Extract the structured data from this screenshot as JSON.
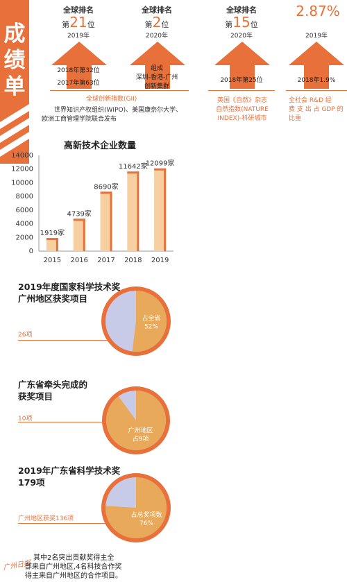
{
  "sidebar": {
    "title": "成绩单",
    "credit": "广州日报"
  },
  "ranks": [
    {
      "head": "全球排名",
      "prefix": "第",
      "num": "21",
      "suffix": "位",
      "year": "2019年",
      "history": [
        "2018年第32位",
        "2017年第63位"
      ],
      "source_title": "全球创新指数(GII)",
      "source_desc": [
        "世界知识产权组织(WIPO)、美国康奈尔大学、",
        "欧洲工商管理学院联合发布"
      ]
    },
    {
      "head": "全球排名",
      "prefix": "第",
      "num": "2",
      "suffix": "位",
      "year": "2020年",
      "history": [
        "组成",
        "深圳-香港-广州",
        "创新集群"
      ]
    },
    {
      "head": "全球排名",
      "prefix": "第",
      "num": "15",
      "suffix": "位",
      "year": "2020年",
      "history": [
        "2018年第25位"
      ],
      "source_title": [
        "英国《自然》杂志",
        "自然指数(NATURE",
        "INDEX)-科研城市"
      ]
    },
    {
      "head": "2.87%",
      "year": "2019年",
      "history": [
        "2018年1.9%"
      ],
      "source_title": [
        "全社会 R&D 经",
        "费 支 出 占 GDP 的",
        "比重"
      ]
    }
  ],
  "chart_data": {
    "type": "bar",
    "title": "高新技术企业数量",
    "categories": [
      "2015",
      "2016",
      "2017",
      "2018",
      "2019"
    ],
    "values": [
      1919,
      4739,
      8690,
      11642,
      12099
    ],
    "value_labels": [
      "1919家",
      "4739家",
      "8690家",
      "11642家",
      "12099家"
    ],
    "ylim": [
      0,
      14000
    ],
    "yticks": [
      "0",
      "2000",
      "4000",
      "6000",
      "8000",
      "10000",
      "12000",
      "14000"
    ],
    "bar_color": "#f7cfa0",
    "bar_edge_color": "#e8703a"
  },
  "pies": [
    {
      "title": [
        "2019年度国家科学技术奖",
        "广州地区获奖项目"
      ],
      "side_label": "26项",
      "inner": [
        "占全省",
        "52%"
      ],
      "share": 0.52
    },
    {
      "title": [
        "广东省牵头完成的",
        "获奖项目"
      ],
      "side_label": "10项",
      "inner": [
        "广州地区",
        "占9项"
      ],
      "share": 0.9
    },
    {
      "title": [
        "2019年广东省科学技术奖",
        "179项"
      ],
      "side_label": "广州地区获奖136项",
      "inner": [
        "占总奖项数",
        "76%"
      ],
      "share": 0.76
    }
  ],
  "footnote": [
    "其中2名突出贡献奖得主全",
    "部来自广州地区,4名科技合作奖",
    "得主来自广州地区的合作项目。"
  ],
  "colors": {
    "accent": "#e8703a",
    "pie_main": "#e9a95a",
    "pie_rest": "#c8cbe8"
  }
}
